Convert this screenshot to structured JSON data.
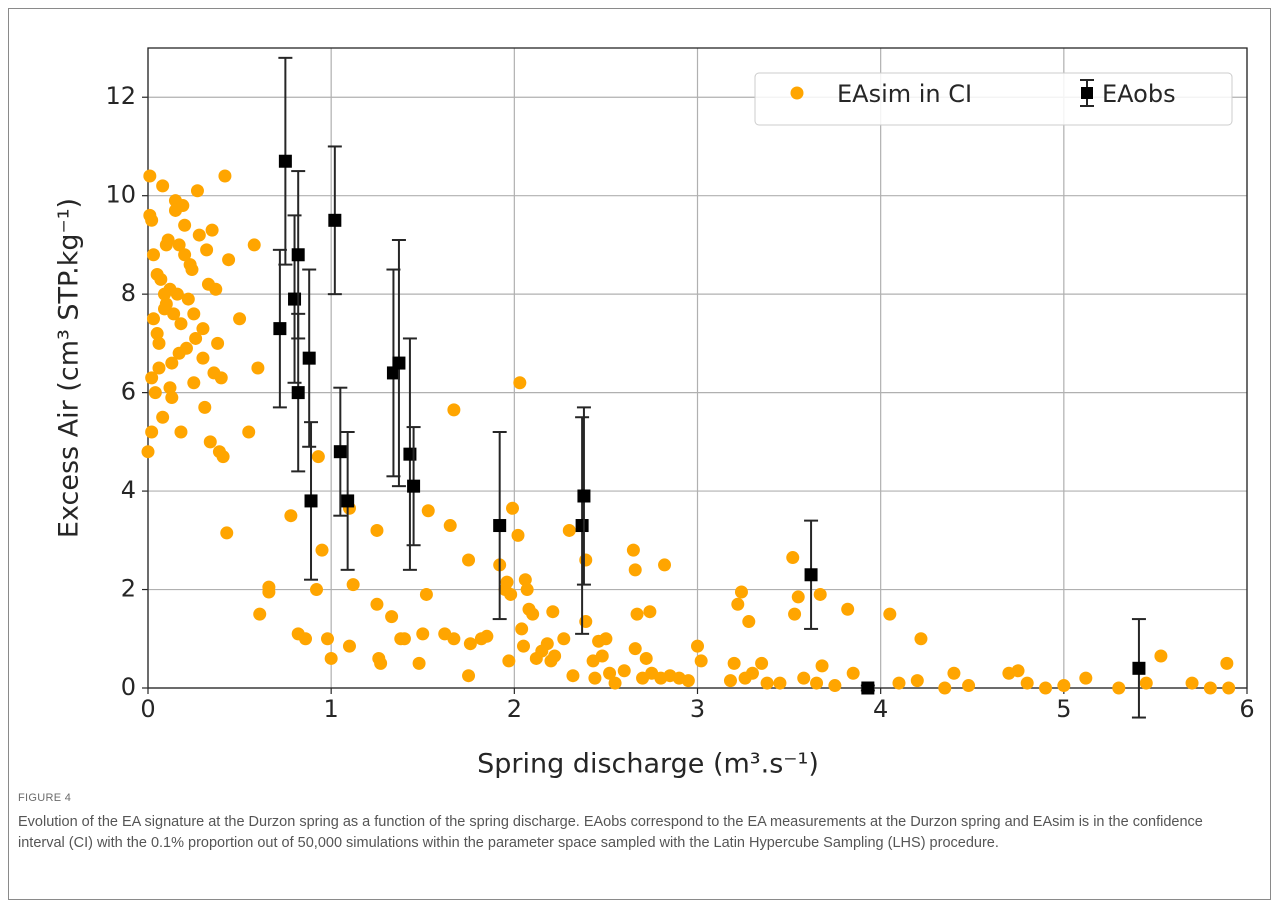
{
  "chart_data": {
    "type": "scatter",
    "xlabel": "Spring discharge (m³.s⁻¹)",
    "ylabel": "Excess Air (cm³ STP.kg⁻¹)",
    "xlim": [
      0,
      6
    ],
    "ylim": [
      0,
      13
    ],
    "xticks": [
      0,
      1,
      2,
      3,
      4,
      5,
      6
    ],
    "yticks": [
      0,
      2,
      4,
      6,
      8,
      10,
      12
    ],
    "grid": true,
    "legend": "upper right",
    "series": [
      {
        "name": "EAsim in CI",
        "color": "#ffa500",
        "x": [
          0.01,
          0.02,
          0.03,
          0.05,
          0.06,
          0.08,
          0.1,
          0.12,
          0.14,
          0.15,
          0.17,
          0.2,
          0.22,
          0.24,
          0.25,
          0.27,
          0.3,
          0.32,
          0.35,
          0.38,
          0.4,
          0.42,
          0.44,
          0.0,
          0.02,
          0.04,
          0.07,
          0.09,
          0.11,
          0.13,
          0.16,
          0.18,
          0.19,
          0.21,
          0.23,
          0.26,
          0.28,
          0.31,
          0.33,
          0.36,
          0.39,
          0.01,
          0.03,
          0.05,
          0.08,
          0.1,
          0.12,
          0.15,
          0.18,
          0.2,
          0.25,
          0.3,
          0.34,
          0.37,
          0.41,
          0.02,
          0.06,
          0.09,
          0.13,
          0.17,
          0.43,
          0.5,
          0.55,
          0.58,
          0.6,
          0.61,
          0.66,
          0.66,
          0.78,
          0.82,
          0.86,
          0.92,
          0.93,
          0.95,
          0.98,
          1.0,
          1.1,
          1.1,
          1.12,
          1.25,
          1.25,
          1.26,
          1.27,
          1.33,
          1.38,
          1.4,
          1.48,
          1.5,
          1.52,
          1.53,
          1.62,
          1.65,
          1.67,
          1.67,
          1.75,
          1.75,
          1.76,
          1.82,
          1.85,
          1.92,
          1.95,
          1.96,
          1.97,
          1.98,
          1.99,
          2.02,
          2.03,
          2.04,
          2.05,
          2.06,
          2.07,
          2.08,
          2.1,
          2.12,
          2.15,
          2.18,
          2.2,
          2.21,
          2.22,
          2.27,
          2.3,
          2.32,
          2.39,
          2.39,
          2.43,
          2.44,
          2.46,
          2.48,
          2.5,
          2.52,
          2.55,
          2.6,
          2.65,
          2.66,
          2.66,
          2.67,
          2.7,
          2.72,
          2.74,
          2.75,
          2.8,
          2.82,
          2.85,
          2.9,
          2.95,
          3.0,
          3.02,
          3.18,
          3.2,
          3.22,
          3.24,
          3.26,
          3.28,
          3.3,
          3.35,
          3.38,
          3.45,
          3.52,
          3.53,
          3.55,
          3.58,
          3.65,
          3.67,
          3.68,
          3.75,
          3.82,
          3.85,
          4.05,
          4.1,
          4.2,
          4.22,
          4.35,
          4.4,
          4.48,
          4.7,
          4.75,
          4.8,
          4.9,
          5.0,
          5.12,
          5.3,
          5.45,
          5.53,
          5.7,
          5.8,
          5.89,
          5.9
        ],
        "values": [
          10.4,
          9.5,
          8.8,
          7.2,
          6.5,
          10.2,
          9.0,
          8.1,
          7.6,
          9.9,
          6.8,
          9.4,
          7.9,
          8.5,
          6.2,
          10.1,
          7.3,
          8.9,
          9.3,
          7.0,
          6.3,
          10.4,
          8.7,
          4.8,
          5.2,
          6.0,
          8.3,
          7.7,
          9.1,
          6.6,
          8.0,
          7.4,
          9.8,
          6.9,
          8.6,
          7.1,
          9.2,
          5.7,
          8.2,
          6.4,
          4.8,
          9.6,
          7.5,
          8.4,
          5.5,
          7.8,
          6.1,
          9.7,
          5.2,
          8.8,
          7.6,
          6.7,
          5.0,
          8.1,
          4.7,
          6.3,
          7.0,
          8.0,
          5.9,
          9.0,
          3.15,
          7.5,
          5.2,
          9.0,
          6.5,
          1.5,
          2.05,
          1.95,
          3.5,
          1.1,
          1.0,
          2.0,
          4.7,
          2.8,
          1.0,
          0.6,
          3.65,
          0.85,
          2.1,
          1.7,
          3.2,
          0.6,
          0.5,
          1.45,
          1.0,
          1.0,
          0.5,
          1.1,
          1.9,
          3.6,
          1.1,
          3.3,
          5.65,
          1.0,
          2.6,
          0.25,
          0.9,
          1.0,
          1.05,
          2.5,
          2.0,
          2.15,
          0.55,
          1.9,
          3.65,
          3.1,
          6.2,
          1.2,
          0.85,
          2.2,
          2.0,
          1.6,
          1.5,
          0.6,
          0.75,
          0.9,
          0.55,
          1.55,
          0.65,
          1.0,
          3.2,
          0.25,
          2.6,
          1.35,
          0.55,
          0.2,
          0.95,
          0.65,
          1.0,
          0.3,
          0.1,
          0.35,
          2.8,
          2.4,
          0.8,
          1.5,
          0.2,
          0.6,
          1.55,
          0.3,
          0.2,
          2.5,
          0.25,
          0.2,
          0.15,
          0.85,
          0.55,
          0.15,
          0.5,
          1.7,
          1.95,
          0.2,
          1.35,
          0.3,
          0.5,
          0.1,
          0.1,
          2.65,
          1.5,
          1.85,
          0.2,
          0.1,
          1.9,
          0.45,
          0.05,
          1.6,
          0.3,
          1.5,
          0.1,
          0.15,
          1.0,
          0.0,
          0.3,
          0.05,
          0.3,
          0.35,
          0.1,
          0.0,
          0.05,
          0.2,
          0.0,
          0.1,
          0.65,
          0.1,
          0.0,
          0.5,
          0.0
        ]
      },
      {
        "name": "EAobs",
        "color": "#000000",
        "x": [
          0.72,
          0.75,
          0.8,
          0.82,
          0.82,
          0.88,
          0.89,
          1.02,
          1.05,
          1.09,
          1.34,
          1.37,
          1.43,
          1.45,
          1.92,
          2.37,
          2.38,
          3.62,
          3.93,
          5.41
        ],
        "values": [
          7.3,
          10.7,
          7.9,
          8.8,
          6.0,
          6.7,
          3.8,
          9.5,
          4.8,
          3.8,
          6.4,
          6.6,
          4.75,
          4.1,
          3.3,
          3.3,
          3.9,
          2.3,
          0.0,
          0.4
        ],
        "errors": [
          1.6,
          2.1,
          1.7,
          1.7,
          1.6,
          1.8,
          1.6,
          1.5,
          1.3,
          1.4,
          2.1,
          2.5,
          2.35,
          1.2,
          1.9,
          2.2,
          1.8,
          1.1,
          0.05,
          1.0
        ]
      }
    ]
  },
  "figure": {
    "label": "FIGURE 4",
    "caption": "Evolution of the EA signature at the Durzon spring as a function of the spring discharge. EAobs correspond to the EA measurements at the Durzon spring and EAsim is in the confidence interval (CI) with the 0.1% proportion out of 50,000 simulations within the parameter space sampled with the Latin Hypercube Sampling (LHS) procedure."
  }
}
